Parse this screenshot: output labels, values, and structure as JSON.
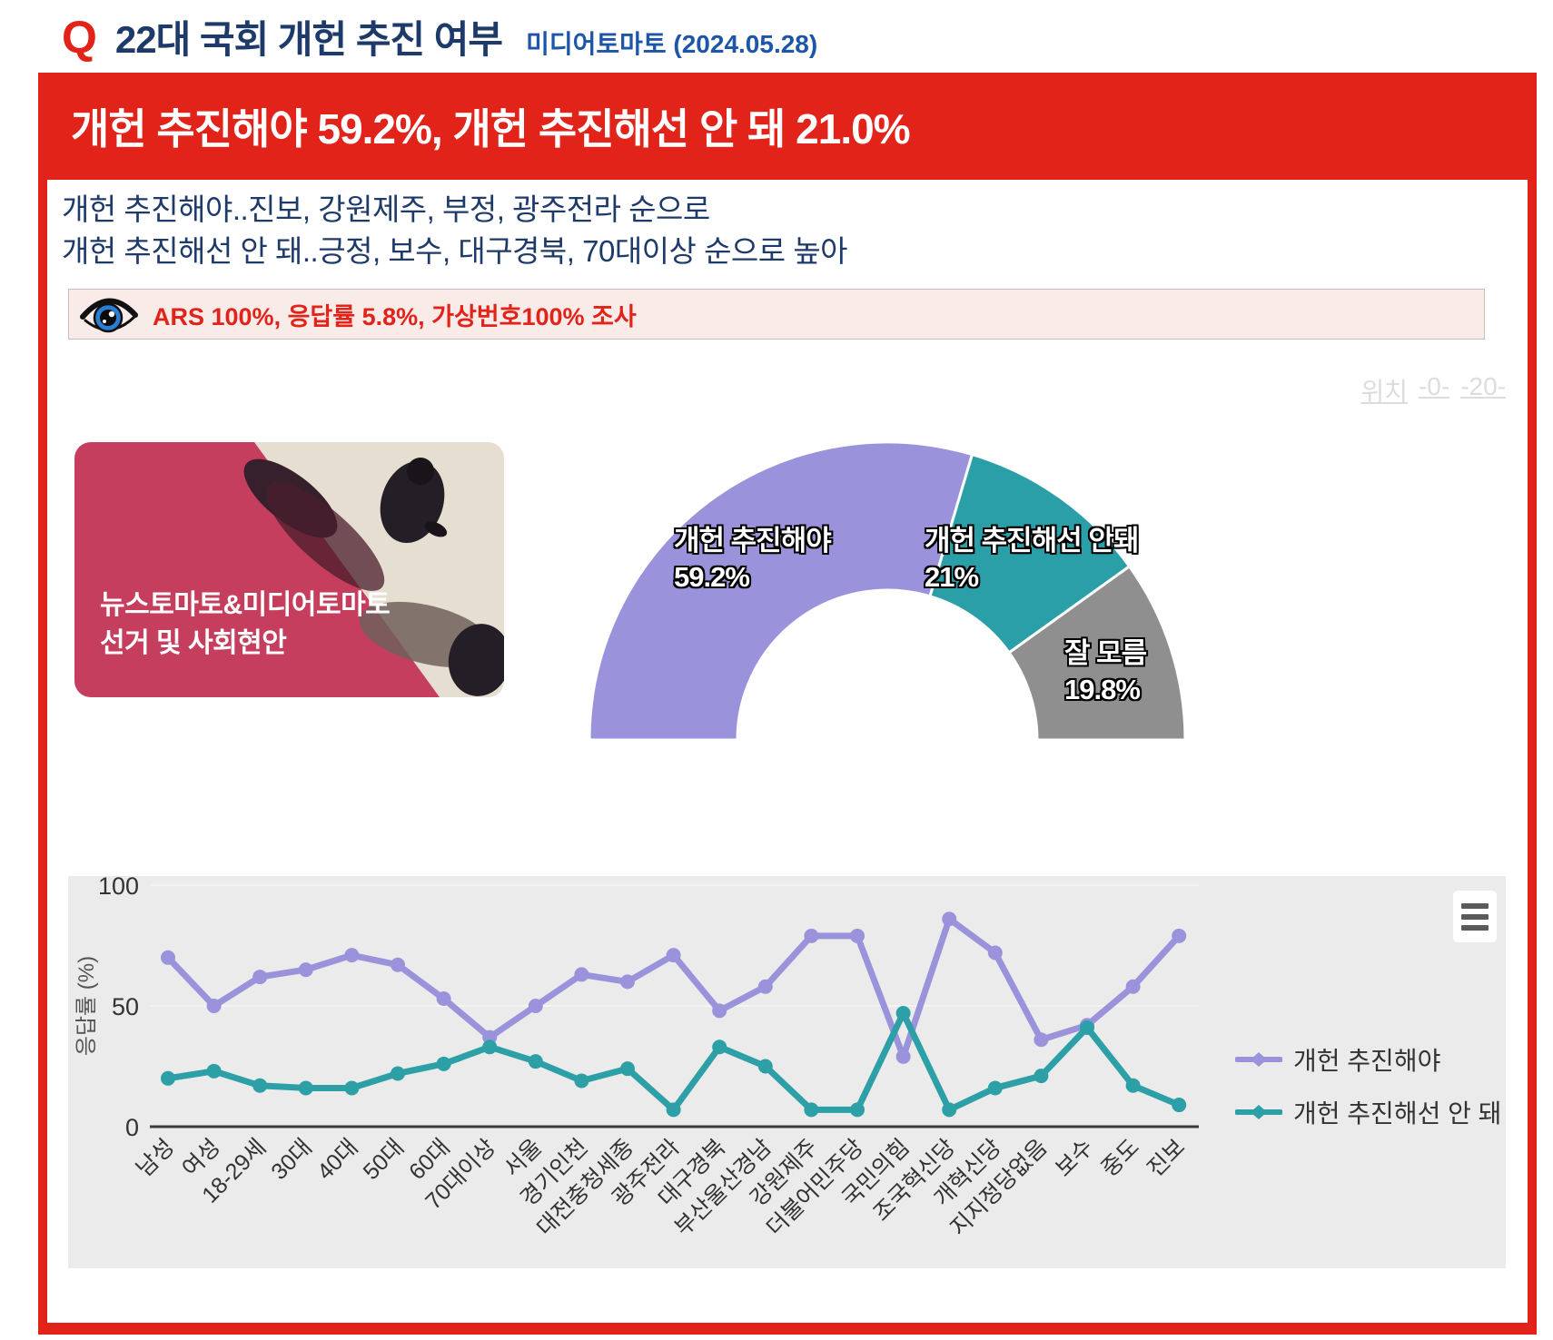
{
  "header": {
    "q": "Q",
    "title": "22대 국회 개헌 추진 여부",
    "source": "미디어토마토 (2024.05.28)"
  },
  "banner": {
    "headline": "개헌 추진해야 59.2%, 개헌 추진해선 안 돼 21.0%"
  },
  "subtitle": {
    "line1": "개헌 추진해야..진보, 강원제주, 부정, 광주전라 순으로",
    "line2": "개헌 추진해선 안 돼..긍정, 보수, 대구경북, 70대이상 순으로 높아"
  },
  "survey_info": {
    "text": "ARS 100%, 응답률 5.8%, 가상번호100% 조사"
  },
  "position_nav": {
    "label": "위치",
    "links": [
      "-0-",
      "-20-"
    ]
  },
  "media_card": {
    "line1": "뉴스토마토&미디어토마토",
    "line2": "선거 및 사회현안"
  },
  "colors": {
    "banner_red": "#e2231a",
    "title_navy": "#1e3a6a",
    "source_blue": "#1d55a8",
    "purple": "#9a93dc",
    "teal": "#2c9fa7",
    "gray_slice": "#8f8f8f",
    "chart_bg": "#ebebeb"
  },
  "chart_data": [
    {
      "type": "pie",
      "variant": "half-donut",
      "slices": [
        {
          "label": "개헌 추진해야",
          "value": 59.2,
          "display": "59.2%",
          "color": "#9a93dc"
        },
        {
          "label": "개헌 추진해선 안돼",
          "value": 21.0,
          "display": "21%",
          "color": "#2a9fa8"
        },
        {
          "label": "잘 모름",
          "value": 19.8,
          "display": "19.8%",
          "color": "#8f8f8f"
        }
      ]
    },
    {
      "type": "line",
      "title": "",
      "ylabel": "응답률 (%)",
      "ylim": [
        0,
        100
      ],
      "yticks": [
        0,
        50,
        100
      ],
      "grid": true,
      "legend_position": "right",
      "categories": [
        "남성",
        "여성",
        "18-29세",
        "30대",
        "40대",
        "50대",
        "60대",
        "70대이상",
        "서울",
        "경기인천",
        "대전충청세종",
        "광주전라",
        "대구경북",
        "부산울산경남",
        "강원제주",
        "더불어민주당",
        "국민의힘",
        "조국혁신당",
        "개혁신당",
        "지지정당없음",
        "보수",
        "중도",
        "진보"
      ],
      "series": [
        {
          "name": "개헌 추진해야",
          "color": "#9a93dc",
          "values": [
            70,
            50,
            62,
            65,
            71,
            67,
            53,
            37,
            50,
            63,
            60,
            71,
            48,
            58,
            79,
            79,
            29,
            86,
            72,
            36,
            42,
            58,
            79
          ]
        },
        {
          "name": "개헌 추진해선 안 돼",
          "color": "#2c9fa7",
          "values": [
            20,
            23,
            17,
            16,
            16,
            22,
            26,
            33,
            27,
            19,
            24,
            7,
            33,
            25,
            7,
            7,
            47,
            7,
            16,
            21,
            41,
            17,
            9
          ]
        }
      ]
    }
  ]
}
